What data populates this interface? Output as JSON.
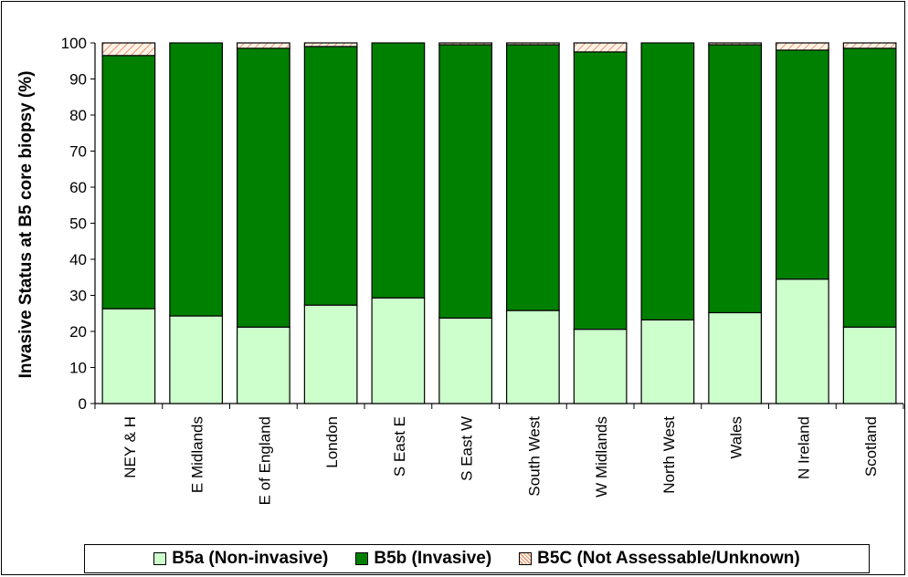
{
  "chart_data": {
    "type": "bar",
    "stacked": true,
    "ylabel": "Invasive Status at B5 core biopsy (%)",
    "ylim": [
      0,
      100
    ],
    "yticks": [
      0,
      10,
      20,
      30,
      40,
      50,
      60,
      70,
      80,
      90,
      100
    ],
    "grid": false,
    "legend_position": "bottom",
    "categories": [
      "NEY & H",
      "E Midlands",
      "E of England",
      "London",
      "S East E",
      "S East W",
      "South West",
      "W Midlands",
      "North West",
      "Wales",
      "N Ireland",
      "Scotland"
    ],
    "series": [
      {
        "name": "B5a (Non-invasive)",
        "color": "#ccffcc",
        "values": [
          26.3,
          24.3,
          21.2,
          27.3,
          29.3,
          23.7,
          25.8,
          20.6,
          23.2,
          25.2,
          34.5,
          21.2
        ]
      },
      {
        "name": "B5b (Invasive)",
        "color": "#008000",
        "values": [
          70.2,
          75.7,
          77.3,
          71.7,
          70.7,
          75.8,
          73.7,
          76.9,
          76.8,
          74.3,
          63.5,
          77.3
        ]
      },
      {
        "name": "B5C (Not Assessable/Unknown)",
        "color": "#ffe8cc",
        "pattern": "hatched",
        "values": [
          3.5,
          0.0,
          1.5,
          1.0,
          0.0,
          0.5,
          0.5,
          2.5,
          0.0,
          0.5,
          2.0,
          1.5
        ]
      }
    ]
  }
}
